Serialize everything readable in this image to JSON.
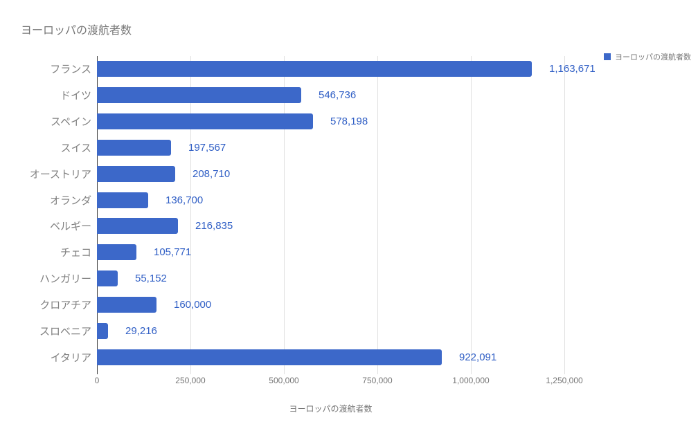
{
  "title": "ヨーロッパの渡航者数",
  "legend": {
    "label": "ヨーロッパの渡航者数",
    "swatch_icon": "legend-swatch-square"
  },
  "axis": {
    "title": "ヨーロッパの渡航者数"
  },
  "colors": {
    "bar": "#3c68c9",
    "value_label": "#2f5ec5",
    "grid": "#e0e0e0",
    "axis_line": "#424242",
    "muted_text": "#757575",
    "category_text": "#808080",
    "background": "#ffffff"
  },
  "chart_data": {
    "type": "bar",
    "orientation": "horizontal",
    "title": "ヨーロッパの渡航者数",
    "categories": [
      "フランス",
      "ドイツ",
      "スペイン",
      "スイス",
      "オーストリア",
      "オランダ",
      "ベルギー",
      "チェコ",
      "ハンガリー",
      "クロアチア",
      "スロベニア",
      "イタリア"
    ],
    "values": [
      1163671,
      546736,
      578198,
      197567,
      208710,
      136700,
      216835,
      105771,
      55152,
      160000,
      29216,
      922091
    ],
    "value_labels": [
      "1,163,671",
      "546,736",
      "578,198",
      "197,567",
      "208,710",
      "136,700",
      "216,835",
      "105,771",
      "55,152",
      "160,000",
      "29,216",
      "922,091"
    ],
    "xlabel": "ヨーロッパの渡航者数",
    "ylabel": "",
    "xlim": [
      0,
      1250000
    ],
    "xticks": [
      0,
      250000,
      500000,
      750000,
      1000000,
      1250000
    ],
    "xtick_labels": [
      "0",
      "250,000",
      "500,000",
      "750,000",
      "1,000,000",
      "1,250,000"
    ],
    "legend": [
      "ヨーロッパの渡航者数"
    ],
    "legend_position": "top-right",
    "grid": true
  }
}
